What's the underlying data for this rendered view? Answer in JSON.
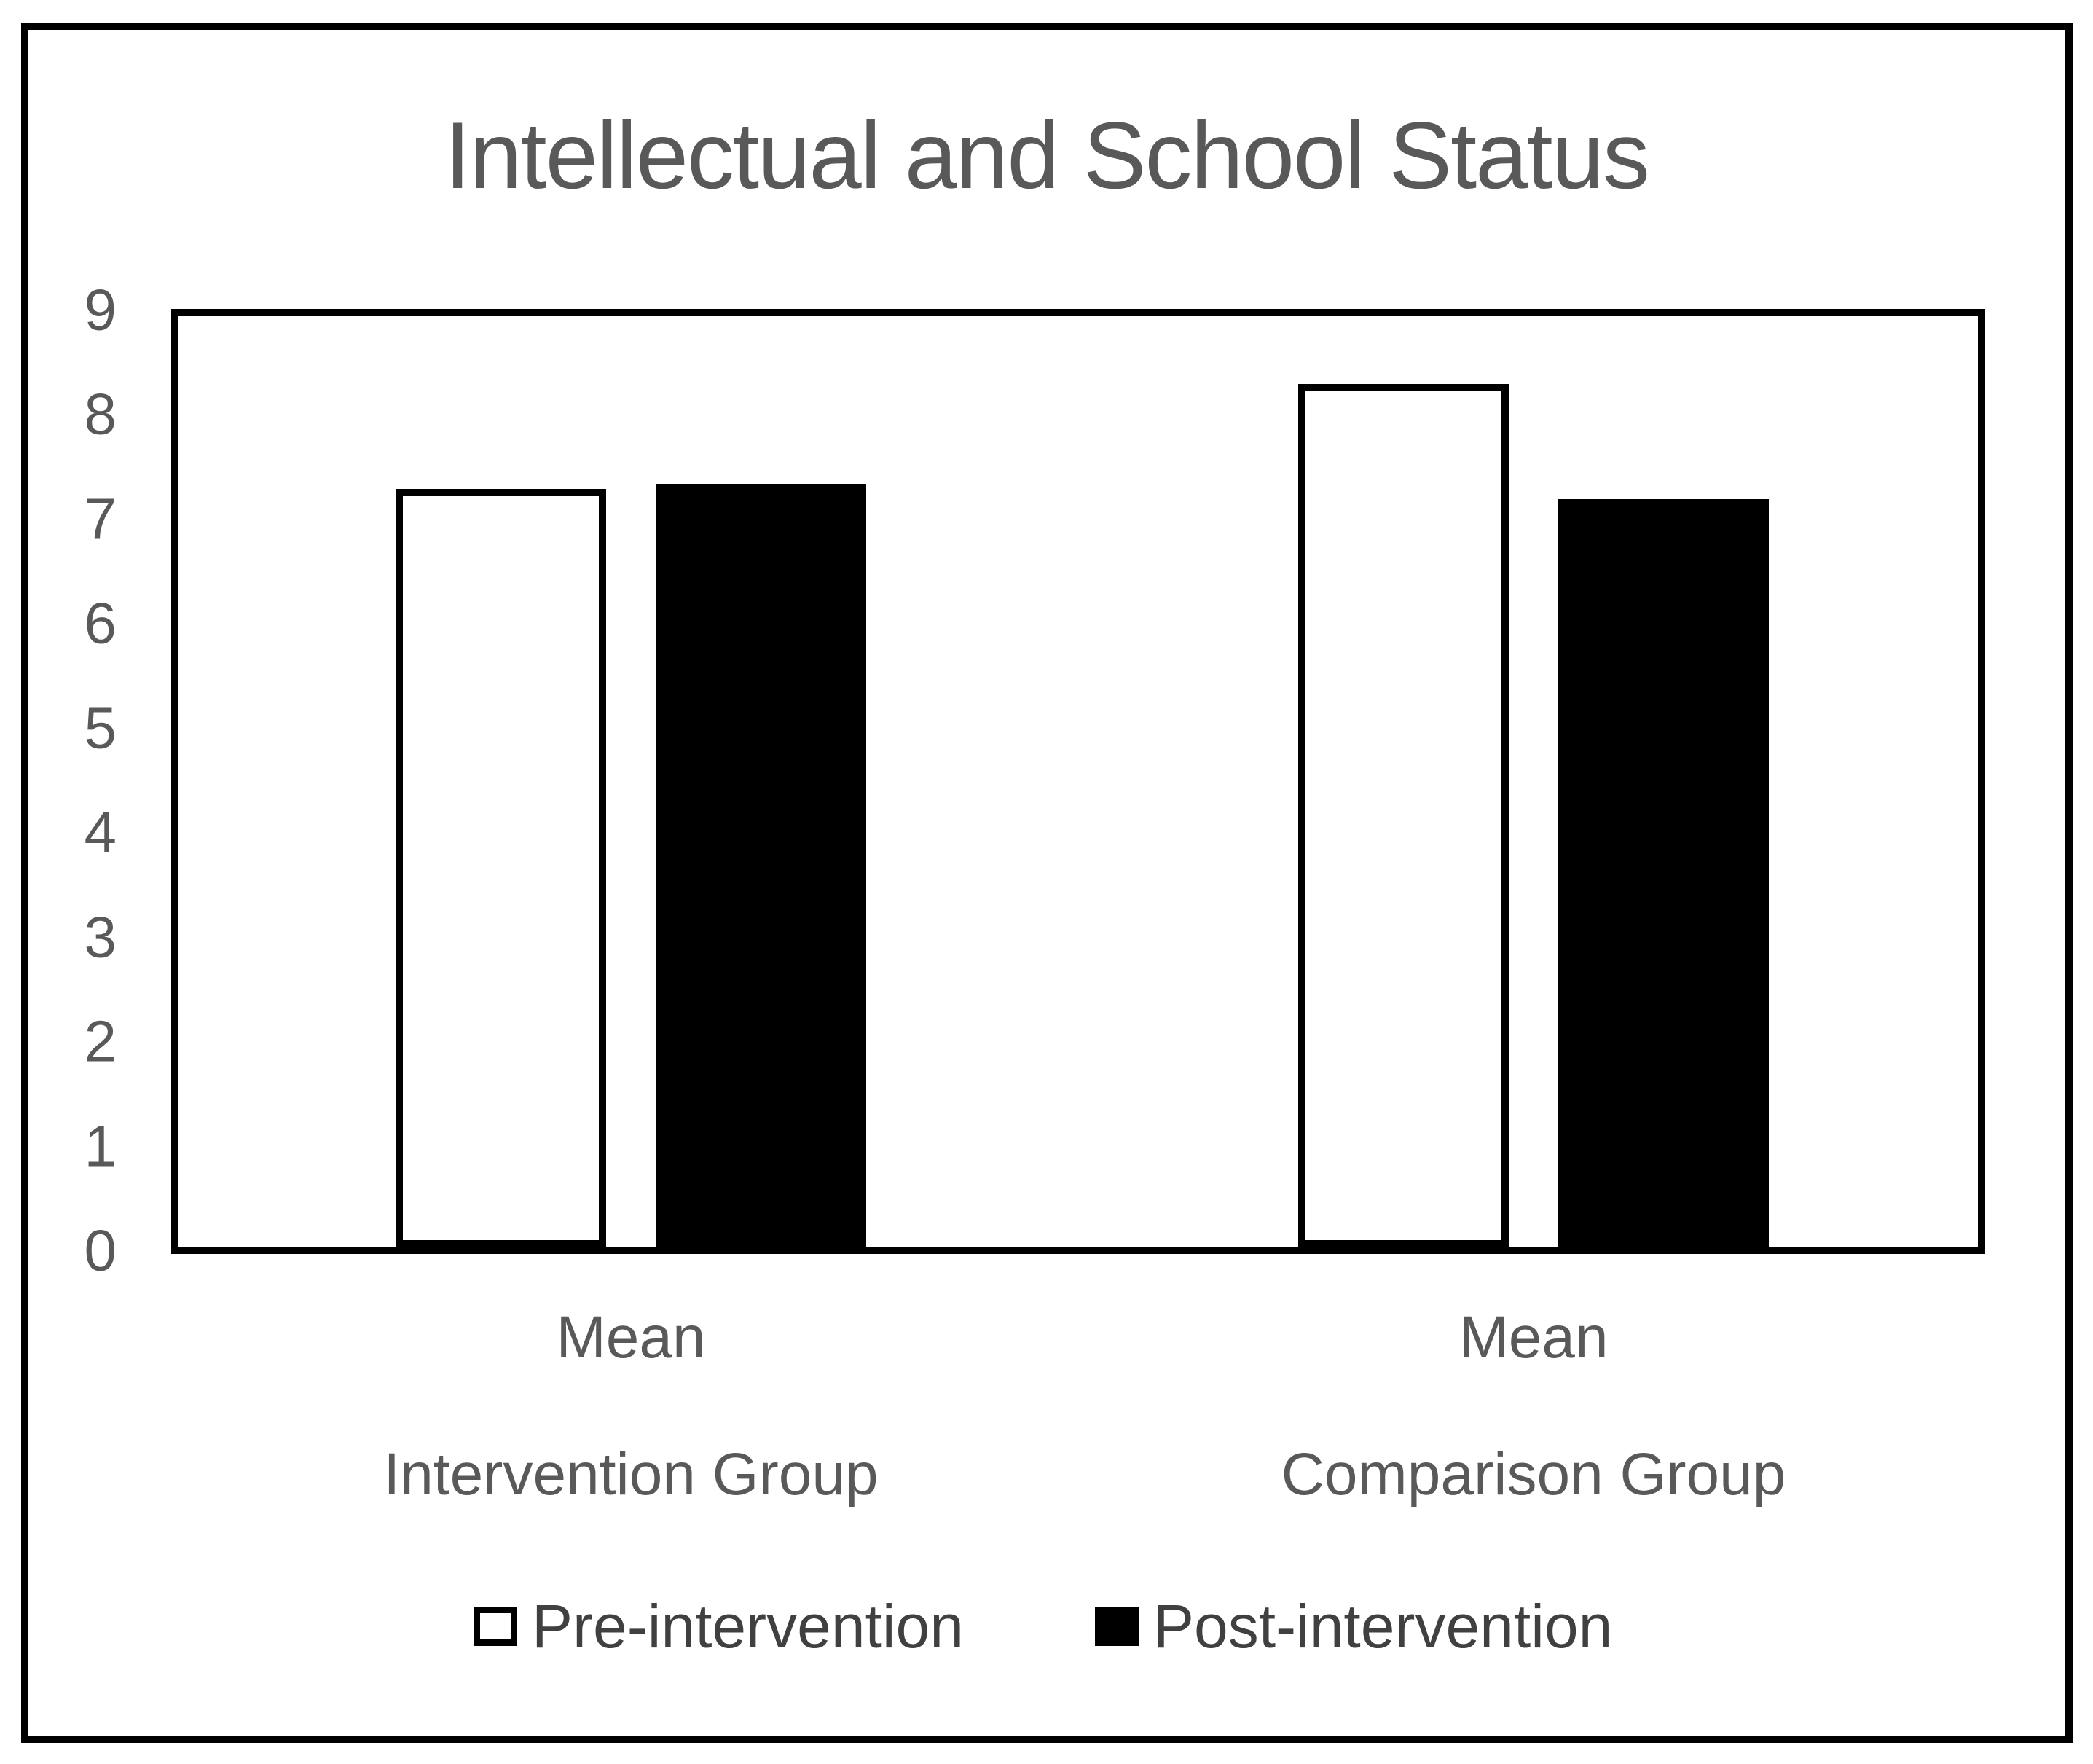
{
  "figure": {
    "background_color": "#ffffff",
    "frame_border_color": "#000000",
    "title_color": "#595959",
    "axis_label_color": "#595959",
    "category_label_color": "#595959",
    "legend_text_color": "#404040"
  },
  "chart_data": {
    "type": "bar",
    "title": "Intellectual and School Status",
    "categories": [
      {
        "line1": "Mean",
        "line2": "Intervention Group"
      },
      {
        "line1": "Mean",
        "line2": "Comparison Group"
      }
    ],
    "series": [
      {
        "name": "Pre-intervention",
        "fill": "#ffffff",
        "stroke": "#000000",
        "values": [
          7.3,
          8.3
        ]
      },
      {
        "name": "Post-intervention",
        "fill": "#000000",
        "stroke": "#000000",
        "values": [
          7.35,
          7.2
        ]
      }
    ],
    "xlabel": "",
    "ylabel": "",
    "ylim": [
      0,
      9
    ],
    "yticks": [
      0,
      1,
      2,
      3,
      4,
      5,
      6,
      7,
      8,
      9
    ],
    "grid": false,
    "legend_position": "bottom"
  }
}
